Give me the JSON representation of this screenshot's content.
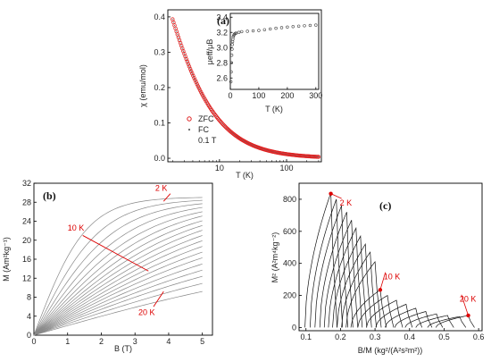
{
  "chart_data": [
    {
      "type": "scatter",
      "panel_label": "(a)",
      "xlabel": "T (K)",
      "ylabel": "χ (emu/mol)",
      "xscale": "log",
      "xlim": [
        1.7,
        330
      ],
      "ylim": [
        -0.01,
        0.42
      ],
      "xticks": [
        {
          "v": 10,
          "label": "10"
        },
        {
          "v": 100,
          "label": "100"
        }
      ],
      "yticks": [
        0.0,
        0.1,
        0.2,
        0.3,
        0.4
      ],
      "ytick_labels": [
        "0.0",
        "0.1",
        "0.2",
        "0.3",
        "0.4"
      ],
      "model": {
        "form": "C/(T+theta)",
        "C": 1.18,
        "theta": 1.0
      },
      "series": [
        {
          "name": "ZFC",
          "marker": "open-circle",
          "color": "#e02020"
        },
        {
          "name": "FC",
          "marker": "dot",
          "color": "#666666"
        }
      ],
      "legend": {
        "placement": "bottom-left",
        "note": "0.1 T"
      },
      "inset": {
        "type": "scatter",
        "xlabel": "T (K)",
        "ylabel": "μeff/μB",
        "xlim": [
          0,
          310
        ],
        "ylim": [
          2.45,
          3.45
        ],
        "xticks": [
          0,
          100,
          200,
          300
        ],
        "xtick_labels": [
          "0",
          "100",
          "200",
          "300"
        ],
        "yticks": [
          2.6,
          2.8,
          3.0,
          3.2,
          3.4
        ],
        "ytick_labels": [
          "2.6",
          "2.8",
          "3.0",
          "3.2",
          "3.4"
        ],
        "points": [
          [
            2,
            2.55
          ],
          [
            3,
            2.68
          ],
          [
            4,
            2.8
          ],
          [
            5,
            2.9
          ],
          [
            6,
            2.98
          ],
          [
            7,
            3.04
          ],
          [
            8,
            3.08
          ],
          [
            9,
            3.11
          ],
          [
            10,
            3.14
          ],
          [
            12,
            3.16
          ],
          [
            14,
            3.175
          ],
          [
            17,
            3.185
          ],
          [
            20,
            3.19
          ],
          [
            30,
            3.2
          ],
          [
            40,
            3.21
          ],
          [
            60,
            3.215
          ],
          [
            80,
            3.22
          ],
          [
            100,
            3.225
          ],
          [
            120,
            3.235
          ],
          [
            140,
            3.245
          ],
          [
            160,
            3.255
          ],
          [
            180,
            3.262
          ],
          [
            200,
            3.27
          ],
          [
            220,
            3.276
          ],
          [
            240,
            3.282
          ],
          [
            260,
            3.288
          ],
          [
            280,
            3.292
          ],
          [
            300,
            3.296
          ]
        ],
        "marker_color": "#444444"
      }
    },
    {
      "type": "line",
      "panel_label": "(b)",
      "xlabel": "B (T)",
      "ylabel": "M (Am²kg⁻¹)",
      "xlim": [
        0,
        5.3
      ],
      "ylim": [
        0,
        32
      ],
      "xticks": [
        0,
        1,
        2,
        3,
        4,
        5
      ],
      "xtick_labels": [
        "0",
        "1",
        "2",
        "3",
        "4",
        "5"
      ],
      "yticks": [
        0,
        4,
        8,
        12,
        16,
        20,
        24,
        28,
        32
      ],
      "ytick_labels": [
        "0",
        "4",
        "8",
        "12",
        "16",
        "20",
        "24",
        "28",
        "32"
      ],
      "temperatures_K": [
        2,
        3,
        4,
        5,
        6,
        7,
        8,
        9,
        10,
        11,
        12,
        13,
        14,
        15,
        16,
        17,
        18,
        19,
        20
      ],
      "M_at_5T": [
        29.0,
        28.4,
        27.7,
        26.9,
        26.0,
        25.1,
        24.1,
        23.1,
        22.1,
        21.0,
        19.9,
        18.7,
        17.5,
        16.3,
        15.0,
        13.7,
        12.4,
        10.9,
        9.2
      ],
      "model": {
        "form": "M_sat*tanh(B/B0)",
        "B0_at_2K": 1.55,
        "B0_at_20K": 9.0
      },
      "line_color": "#888888",
      "annotations": [
        {
          "text": "2 K",
          "x": 3.6,
          "y": 30.4,
          "target_T": 2
        },
        {
          "text": "10 K",
          "x": 1.0,
          "y": 22.0,
          "target_T": 10
        },
        {
          "text": "20 K",
          "x": 3.1,
          "y": 4.2,
          "target_T": 20
        }
      ]
    },
    {
      "type": "line",
      "panel_label": "(c)",
      "xlabel": "B/M (kg²/(A²s²m²))",
      "ylabel": "M² (A²m⁴kg⁻²)",
      "xlim": [
        0.08,
        0.61
      ],
      "ylim": [
        -20,
        900
      ],
      "xticks": [
        0.1,
        0.2,
        0.3,
        0.4,
        0.5,
        0.6
      ],
      "xtick_labels": [
        "0.1",
        "0.2",
        "0.3",
        "0.4",
        "0.5",
        "0.6"
      ],
      "yticks": [
        0,
        200,
        400,
        600,
        800
      ],
      "ytick_labels": [
        "0",
        "200",
        "400",
        "600",
        "800"
      ],
      "line_color": "#111111",
      "peaks": [
        [
          0.172,
          840
        ],
        [
          0.188,
          800
        ],
        [
          0.203,
          760
        ],
        [
          0.218,
          720
        ],
        [
          0.232,
          670
        ],
        [
          0.245,
          620
        ],
        [
          0.258,
          570
        ],
        [
          0.272,
          520
        ],
        [
          0.286,
          470
        ],
        [
          0.3,
          410
        ],
        [
          0.315,
          235
        ],
        [
          0.336,
          200
        ],
        [
          0.362,
          170
        ],
        [
          0.39,
          145
        ],
        [
          0.418,
          120
        ],
        [
          0.447,
          100
        ],
        [
          0.478,
          85
        ],
        [
          0.51,
          75
        ],
        [
          0.545,
          68
        ],
        [
          0.57,
          75
        ]
      ],
      "annotations": [
        {
          "text": "2 K",
          "x": 0.198,
          "y": 760,
          "target": [
            0.172,
            835
          ]
        },
        {
          "text": "10 K",
          "x": 0.325,
          "y": 300,
          "target": [
            0.315,
            235
          ]
        },
        {
          "text": "20 K",
          "x": 0.545,
          "y": 160,
          "target": [
            0.57,
            75
          ]
        }
      ]
    }
  ]
}
